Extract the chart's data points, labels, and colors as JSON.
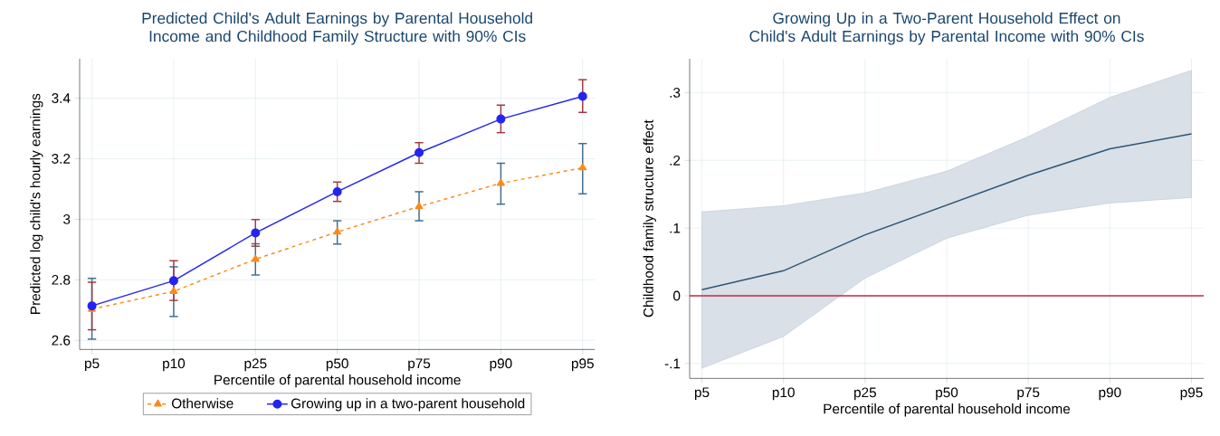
{
  "chart_data": [
    {
      "type": "line",
      "title": "Predicted Child's Adult Earnings by Parental Household Income and Childhood Family Structure with 90% CIs",
      "xlabel": "Percentile of parental household income",
      "ylabel": "Predicted log child's hourly earnings",
      "categories": [
        "p5",
        "p10",
        "p25",
        "p50",
        "p75",
        "p90",
        "p95"
      ],
      "ylim": [
        2.57,
        3.53
      ],
      "yticks": [
        2.6,
        2.8,
        3,
        3.2,
        3.4
      ],
      "grid": true,
      "legend": "bottom",
      "series": [
        {
          "name": "Otherwise",
          "color": "#f98b1c",
          "marker": "triangle",
          "line_style": "dashed",
          "values": [
            2.703,
            2.762,
            2.868,
            2.958,
            3.042,
            3.119,
            3.17
          ],
          "errors": [
            [
              2.604,
              2.805
            ],
            [
              2.679,
              2.843
            ],
            [
              2.816,
              2.919
            ],
            [
              2.918,
              2.995
            ],
            [
              2.995,
              3.091
            ],
            [
              3.05,
              3.185
            ],
            [
              3.084,
              3.25
            ]
          ]
        },
        {
          "name": "Growing up in a two-parent household",
          "color": "#2424f2",
          "marker": "circle",
          "line_style": "solid",
          "values": [
            2.714,
            2.797,
            2.955,
            3.091,
            3.22,
            3.331,
            3.406
          ],
          "errors": [
            [
              2.635,
              2.792
            ],
            [
              2.732,
              2.863
            ],
            [
              2.911,
              2.999
            ],
            [
              3.059,
              3.123
            ],
            [
              3.185,
              3.253
            ],
            [
              3.286,
              3.377
            ],
            [
              3.353,
              3.461
            ]
          ]
        }
      ]
    },
    {
      "type": "line",
      "title": "Growing Up in a Two-Parent Household Effect on Child's Adult Earnings by Parental Income with 90% CIs",
      "xlabel": "Percentile of parental household income",
      "ylabel": "Childhood family structure effect",
      "categories": [
        "p5",
        "p10",
        "p25",
        "p50",
        "p75",
        "p90",
        "p95"
      ],
      "ylim": [
        -0.122,
        0.35
      ],
      "yticks": [
        {
          "value": -0.1,
          "label": "-.1"
        },
        0,
        {
          "value": 0.1,
          "label": ".1"
        },
        {
          "value": 0.2,
          "label": ".2"
        },
        {
          "value": 0.3,
          "label": ".3"
        }
      ],
      "grid": true,
      "ref_lines": [
        {
          "axis": "y",
          "value": 0,
          "color": "#c8264a"
        }
      ],
      "series": [
        {
          "color": "#2e5577",
          "marker": "none",
          "line_style": "solid",
          "values": [
            0.009,
            0.037,
            0.09,
            0.134,
            0.178,
            0.217,
            0.239
          ],
          "lower": [
            -0.107,
            -0.06,
            0.026,
            0.085,
            0.119,
            0.137,
            0.145
          ],
          "upper": [
            0.124,
            0.133,
            0.152,
            0.184,
            0.235,
            0.293,
            0.333
          ]
        }
      ]
    }
  ]
}
